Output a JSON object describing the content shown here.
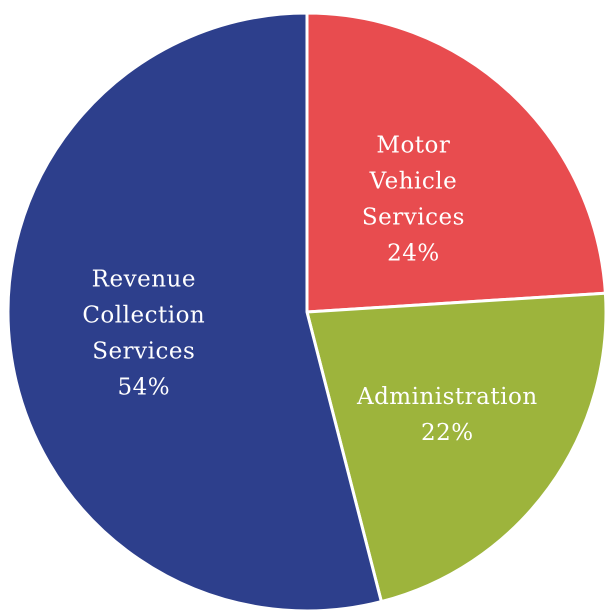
{
  "chart_data": {
    "type": "pie",
    "slices": [
      {
        "label_lines": [
          "Motor",
          "Vehicle",
          "Services"
        ],
        "value": 24,
        "value_label": "24%",
        "color": "#e84c4f"
      },
      {
        "label_lines": [
          "Administration"
        ],
        "value": 22,
        "value_label": "22%",
        "color": "#9db43c"
      },
      {
        "label_lines": [
          "Revenue",
          "Collection",
          "Services"
        ],
        "value": 54,
        "value_label": "54%",
        "color": "#2d3f8c"
      }
    ],
    "start_angle_deg": 0,
    "direction": "clockwise"
  }
}
